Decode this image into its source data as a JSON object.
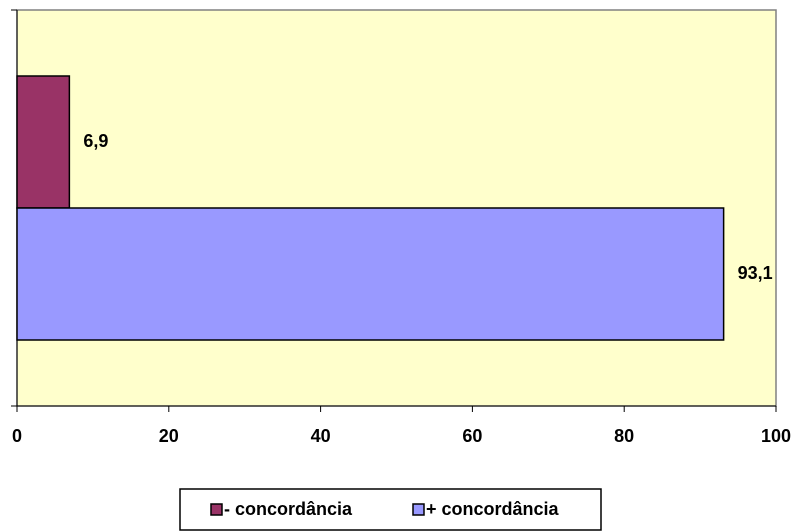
{
  "chart_data": {
    "type": "bar",
    "categories": [
      null
    ],
    "series": [
      {
        "name": "- concordância",
        "color": "#993366",
        "values": [
          6.9
        ],
        "value_labels": [
          "6,9"
        ]
      },
      {
        "name": "+ concordância",
        "color": "#9999ff",
        "values": [
          93.1
        ],
        "value_labels": [
          "93,1"
        ]
      }
    ],
    "xlim": [
      0,
      100
    ],
    "xticks": [
      0,
      20,
      40,
      60,
      80,
      100
    ],
    "background": "#ffffcc"
  }
}
